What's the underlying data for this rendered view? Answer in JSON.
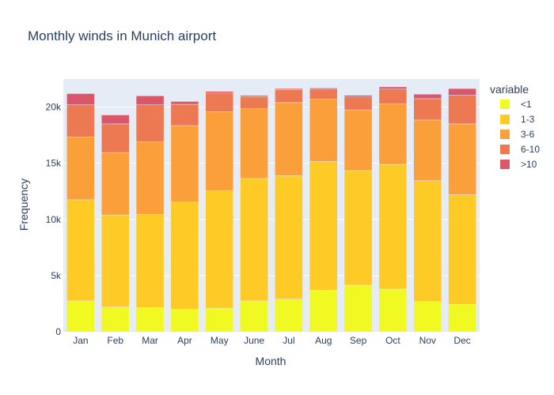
{
  "chart_data": {
    "type": "bar",
    "stacked": true,
    "title": "Monthly winds in Munich airport",
    "xlabel": "Month",
    "ylabel": "Frequency",
    "ylim": [
      0,
      22500
    ],
    "yticks": [
      0,
      5000,
      10000,
      15000,
      20000
    ],
    "ytick_labels": [
      "0",
      "5k",
      "10k",
      "15k",
      "20k"
    ],
    "grid": true,
    "legend_title": "variable",
    "legend_position": "right",
    "categories": [
      "Jan",
      "Feb",
      "Mar",
      "Apr",
      "May",
      "June",
      "Jul",
      "Aug",
      "Sep",
      "Oct",
      "Nov",
      "Dec"
    ],
    "series": [
      {
        "name": "<1",
        "color": "#f0f921",
        "values": [
          2750,
          2200,
          2150,
          2000,
          2100,
          2750,
          2900,
          3700,
          4150,
          3800,
          2700,
          2450
        ]
      },
      {
        "name": "1-3",
        "color": "#fdca26",
        "values": [
          9000,
          8200,
          8300,
          9550,
          10450,
          10900,
          11000,
          11450,
          10200,
          11100,
          10750,
          9750
        ]
      },
      {
        "name": "3-6",
        "color": "#fb9f3a",
        "values": [
          5600,
          5550,
          6450,
          6800,
          7050,
          6200,
          6500,
          5550,
          5400,
          5400,
          5400,
          6300
        ]
      },
      {
        "name": "6-10",
        "color": "#ed7953",
        "values": [
          2850,
          2550,
          3300,
          1900,
          1650,
          1100,
          1150,
          900,
          1150,
          1300,
          1900,
          2550
        ]
      },
      {
        "name": ">10",
        "color": "#d8576b",
        "values": [
          1000,
          800,
          800,
          250,
          150,
          100,
          100,
          100,
          150,
          200,
          400,
          600
        ]
      }
    ]
  }
}
